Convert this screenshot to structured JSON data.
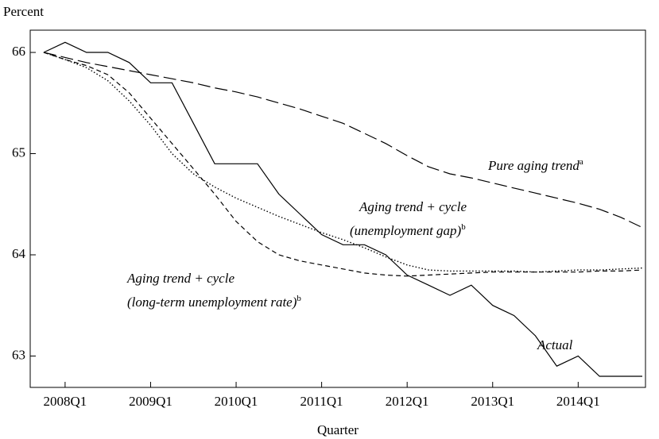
{
  "chart_data": {
    "type": "line",
    "y_label": "Percent",
    "x_label": "Quarter",
    "categories": [
      null,
      "2008Q1",
      null,
      null,
      null,
      "2009Q1",
      null,
      null,
      null,
      "2010Q1",
      null,
      null,
      null,
      "2011Q1",
      null,
      null,
      null,
      "2012Q1",
      null,
      null,
      null,
      "2013Q1",
      null,
      null,
      null,
      "2014Q1",
      null,
      null,
      null
    ],
    "ylim": [
      62.69,
      66.22
    ],
    "yticks": [
      63,
      64,
      65,
      66
    ],
    "grid": false,
    "series": [
      {
        "name": "Actual",
        "label_lines": [
          "Actual"
        ],
        "superscript": null,
        "color": "#000000",
        "dash": "solid",
        "values": [
          66.0,
          66.1,
          66.0,
          66.0,
          65.9,
          65.7,
          65.7,
          65.3,
          64.9,
          64.9,
          64.9,
          64.6,
          64.4,
          64.2,
          64.1,
          64.1,
          64.0,
          63.8,
          63.7,
          63.6,
          63.7,
          63.5,
          63.4,
          63.2,
          62.9,
          63.0,
          62.8,
          62.8,
          62.8
        ]
      },
      {
        "name": "Pure aging trend",
        "label_lines": [
          "Pure aging trend"
        ],
        "superscript": "a",
        "color": "#000000",
        "dash": "long",
        "values": [
          66.0,
          65.95,
          65.9,
          65.86,
          65.82,
          65.78,
          65.74,
          65.7,
          65.65,
          65.61,
          65.56,
          65.5,
          65.44,
          65.37,
          65.3,
          65.2,
          65.1,
          64.98,
          64.87,
          64.8,
          64.76,
          64.71,
          64.66,
          64.61,
          64.56,
          64.51,
          64.45,
          64.37,
          64.27
        ]
      },
      {
        "name": "Aging trend + cycle (unemployment gap)",
        "label_lines": [
          "Aging trend + cycle",
          "(unemployment gap)"
        ],
        "superscript": "b",
        "color": "#000000",
        "dash": "dotted",
        "values": [
          66.0,
          65.93,
          65.85,
          65.72,
          65.52,
          65.28,
          65.0,
          64.8,
          64.67,
          64.56,
          64.47,
          64.38,
          64.3,
          64.22,
          64.15,
          64.07,
          63.98,
          63.9,
          63.85,
          63.84,
          63.84,
          63.84,
          63.84,
          63.83,
          63.84,
          63.85,
          63.85,
          63.86,
          63.87
        ]
      },
      {
        "name": "Aging trend + cycle (long-term unemployment rate)",
        "label_lines": [
          "Aging trend + cycle",
          "(long-term unemployment rate)"
        ],
        "superscript": "b",
        "color": "#000000",
        "dash": "short",
        "values": [
          66.0,
          65.93,
          65.87,
          65.78,
          65.6,
          65.35,
          65.1,
          64.85,
          64.6,
          64.33,
          64.13,
          64.0,
          63.94,
          63.9,
          63.86,
          63.82,
          63.8,
          63.79,
          63.8,
          63.81,
          63.82,
          63.83,
          63.83,
          63.83,
          63.83,
          63.83,
          63.84,
          63.84,
          63.85
        ]
      }
    ]
  }
}
